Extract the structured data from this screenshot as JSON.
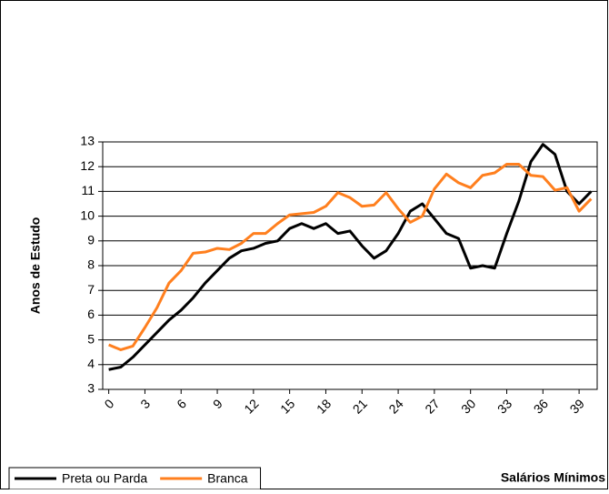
{
  "chart_data": {
    "type": "line",
    "y_label": "Anos de Estudo",
    "x_label": "Salários Mínimos",
    "x": [
      0,
      1,
      2,
      3,
      4,
      5,
      6,
      7,
      8,
      9,
      10,
      11,
      12,
      13,
      14,
      15,
      16,
      17,
      18,
      19,
      20,
      21,
      22,
      23,
      24,
      25,
      26,
      27,
      28,
      29,
      30,
      31,
      32,
      33,
      34,
      35,
      36,
      37,
      38,
      39,
      40
    ],
    "xlim": [
      -0.5,
      40.5
    ],
    "xticks": [
      0,
      3,
      6,
      9,
      12,
      15,
      18,
      21,
      24,
      27,
      30,
      33,
      36,
      39
    ],
    "ylim": [
      3,
      13
    ],
    "yticks": [
      3,
      4,
      5,
      6,
      7,
      8,
      9,
      10,
      11,
      12,
      13
    ],
    "grid": true,
    "legend": "bottom-left",
    "series": [
      {
        "name": "Preta ou Parda",
        "color": "#000000",
        "values": [
          3.8,
          3.9,
          4.3,
          4.8,
          5.3,
          5.8,
          6.2,
          6.7,
          7.3,
          7.8,
          8.3,
          8.6,
          8.7,
          8.9,
          9.0,
          9.5,
          9.7,
          9.5,
          9.7,
          9.3,
          9.4,
          8.8,
          8.3,
          8.6,
          9.3,
          10.2,
          10.5,
          9.9,
          9.3,
          9.1,
          7.9,
          8.0,
          7.9,
          9.3,
          10.6,
          12.2,
          12.9,
          12.5,
          11.0,
          10.5,
          11.0
        ]
      },
      {
        "name": "Branca",
        "color": "#ff7f1e",
        "values": [
          4.8,
          4.6,
          4.75,
          5.5,
          6.3,
          7.3,
          7.8,
          8.5,
          8.55,
          8.7,
          8.65,
          8.9,
          9.3,
          9.3,
          9.7,
          10.05,
          10.1,
          10.15,
          10.4,
          10.95,
          10.75,
          10.4,
          10.45,
          10.95,
          10.3,
          9.75,
          10.0,
          11.1,
          11.7,
          11.35,
          11.15,
          11.65,
          11.75,
          12.1,
          12.1,
          11.65,
          11.6,
          11.05,
          11.15,
          10.2,
          10.7
        ]
      }
    ]
  }
}
